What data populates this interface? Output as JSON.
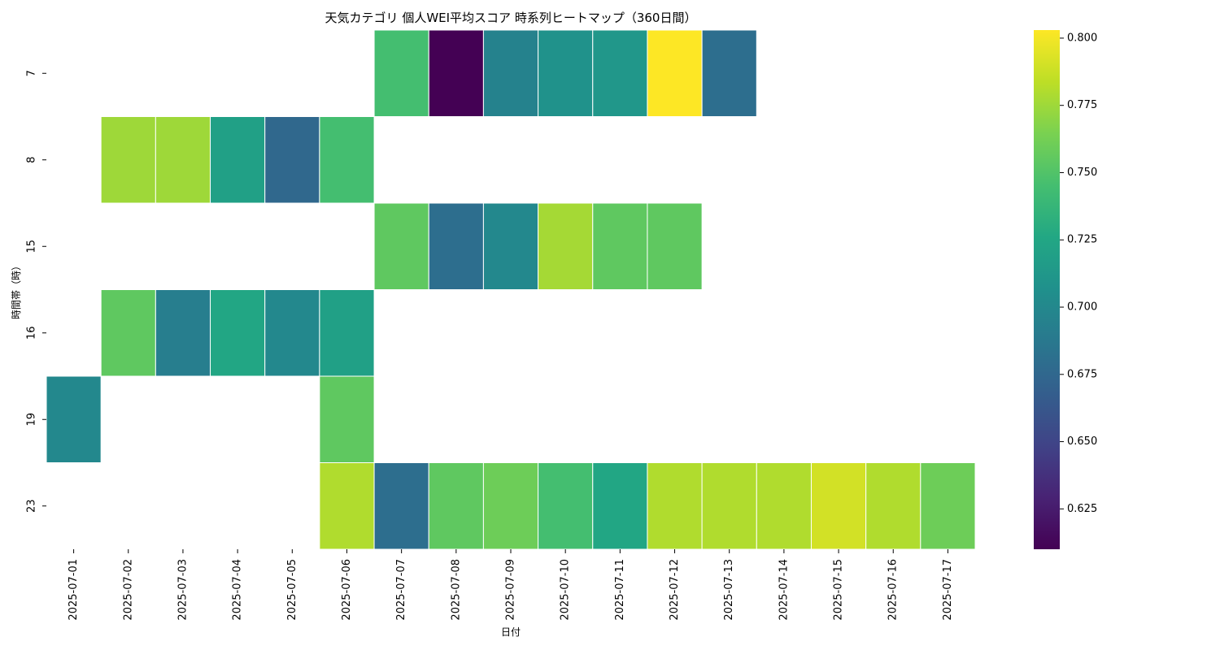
{
  "chart_data": {
    "type": "heatmap",
    "title": "天気カテゴリ 個人WEI平均スコア 時系列ヒートマップ（360日間）",
    "xlabel": "日付",
    "ylabel": "時間帯（時）",
    "x_categories": [
      "2025-07-01",
      "2025-07-02",
      "2025-07-03",
      "2025-07-04",
      "2025-07-05",
      "2025-07-06",
      "2025-07-07",
      "2025-07-08",
      "2025-07-09",
      "2025-07-10",
      "2025-07-11",
      "2025-07-12",
      "2025-07-13",
      "2025-07-14",
      "2025-07-15",
      "2025-07-16",
      "2025-07-17"
    ],
    "y_categories": [
      "7",
      "8",
      "15",
      "16",
      "19",
      "23"
    ],
    "values": [
      [
        null,
        null,
        null,
        null,
        null,
        null,
        0.745,
        0.61,
        0.695,
        0.708,
        0.712,
        0.803,
        0.68,
        null,
        null,
        null,
        null
      ],
      [
        null,
        0.775,
        0.775,
        0.72,
        0.675,
        0.745,
        null,
        null,
        null,
        null,
        null,
        null,
        null,
        null,
        null,
        null,
        null
      ],
      [
        null,
        null,
        null,
        null,
        null,
        null,
        0.755,
        0.68,
        0.7,
        0.777,
        0.755,
        0.755,
        null,
        null,
        null,
        null,
        null
      ],
      [
        null,
        0.755,
        0.692,
        0.725,
        0.7,
        0.72,
        null,
        null,
        null,
        null,
        null,
        null,
        null,
        null,
        null,
        null,
        null
      ],
      [
        0.7,
        null,
        null,
        null,
        null,
        0.755,
        null,
        null,
        null,
        null,
        null,
        null,
        null,
        null,
        null,
        null,
        null
      ],
      [
        null,
        null,
        null,
        null,
        null,
        0.78,
        0.68,
        0.755,
        0.76,
        0.745,
        0.725,
        0.78,
        0.78,
        0.78,
        0.79,
        0.78,
        0.76
      ]
    ],
    "colormap": "viridis",
    "vmin": 0.61,
    "vmax": 0.803,
    "colorbar_ticks": [
      "0.625",
      "0.650",
      "0.675",
      "0.700",
      "0.725",
      "0.750",
      "0.775",
      "0.800"
    ]
  }
}
